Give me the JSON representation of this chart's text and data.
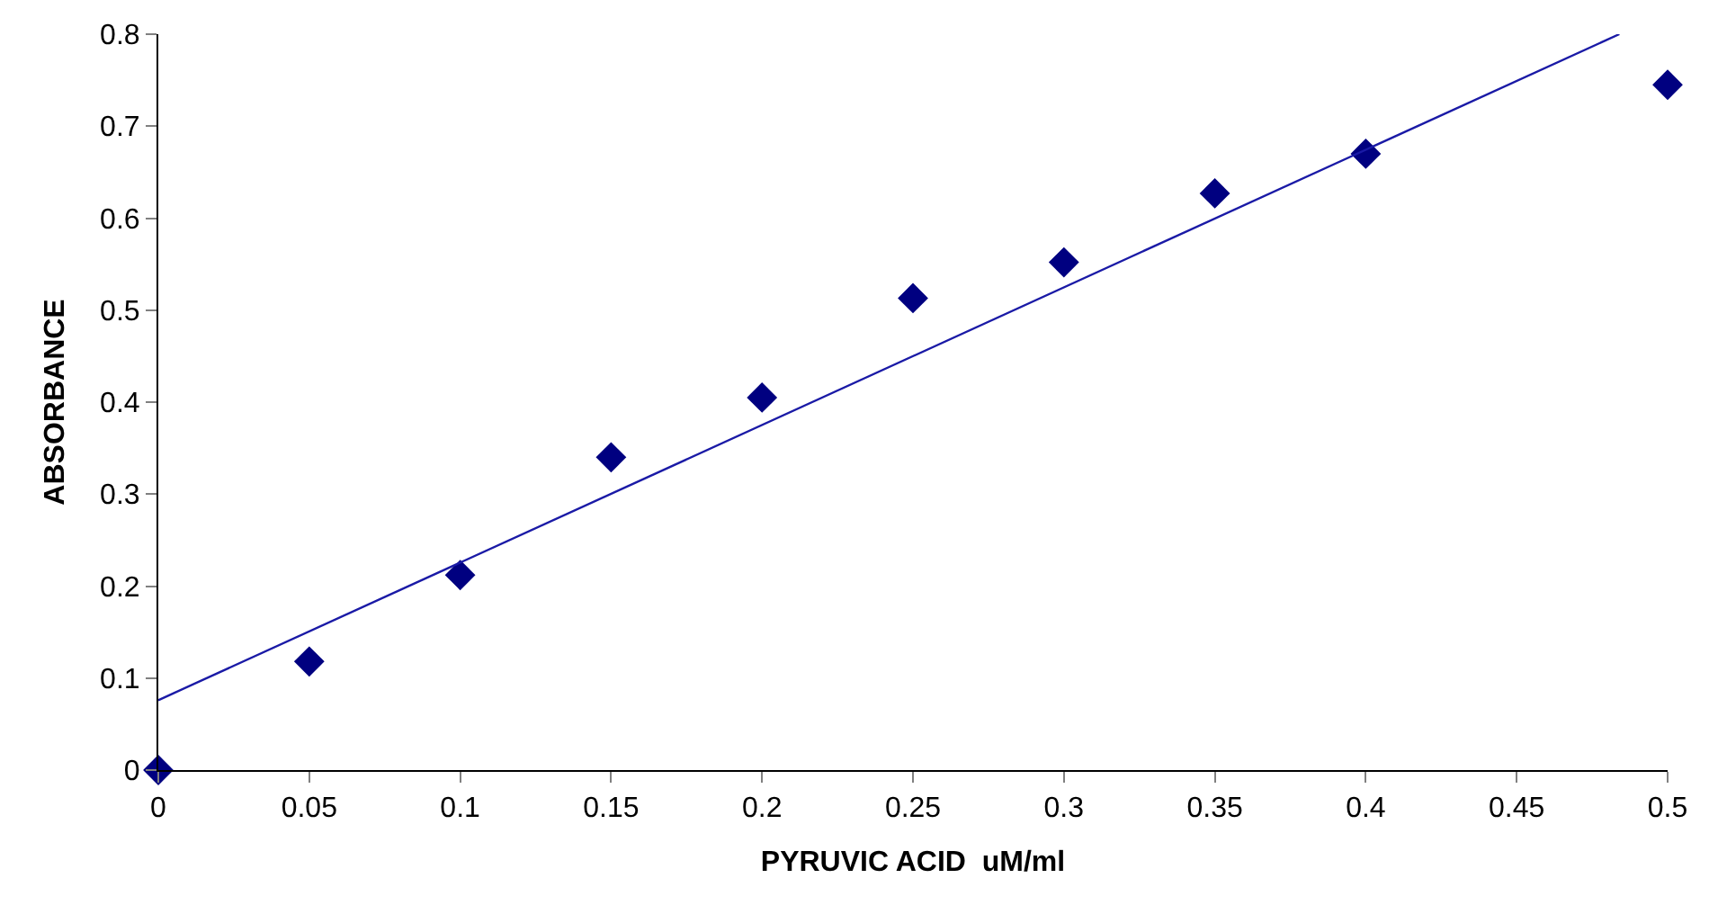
{
  "chart_data": {
    "type": "scatter",
    "xlabel": "PYRUVIC ACID  uM/ml",
    "ylabel": "ABSORBANCE",
    "x": [
      0,
      0.05,
      0.1,
      0.15,
      0.2,
      0.25,
      0.3,
      0.35,
      0.4,
      0.5
    ],
    "series": [
      {
        "color": "#000080",
        "marker": "diamond",
        "values": [
          0,
          0.118,
          0.212,
          0.34,
          0.405,
          0.513,
          0.552,
          0.627,
          0.67,
          0.745
        ]
      },
      {
        "type": "line",
        "color": "#1a1aa6",
        "line_style": "solid",
        "x": [
          0,
          0.484
        ],
        "values": [
          0.076,
          0.8
        ]
      }
    ],
    "xlim": [
      0,
      0.5
    ],
    "xticks": [
      0,
      0.05,
      0.1,
      0.15,
      0.2,
      0.25,
      0.3,
      0.35,
      0.4,
      0.45,
      0.5
    ],
    "ylim": [
      0,
      0.8
    ],
    "yticks": [
      0,
      0.1,
      0.2,
      0.3,
      0.4,
      0.5,
      0.6,
      0.7,
      0.8
    ]
  }
}
